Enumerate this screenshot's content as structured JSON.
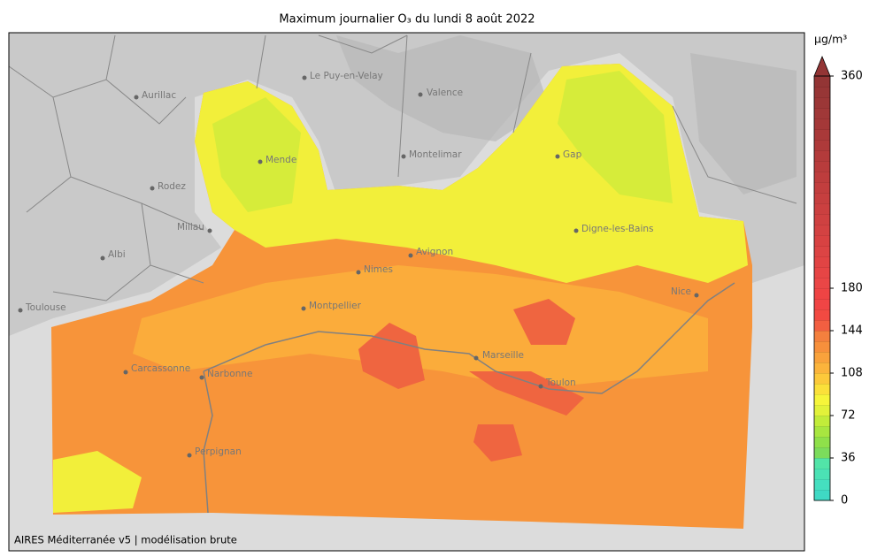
{
  "title": "Maximum journalier O₃ du lundi 8 août 2022",
  "unit": "µg/m³",
  "footer": "AIRES Méditerranée v5 | modélisation brute",
  "cities": [
    "Aurillac",
    "Le Puy-en-Velay",
    "Valence",
    "Mende",
    "Montelimar",
    "Gap",
    "Rodez",
    "Millau",
    "Digne-les-Bains",
    "Albi",
    "Avignon",
    "Nimes",
    "Nice",
    "Toulouse",
    "Montpellier",
    "Marseille",
    "Carcassonne",
    "Narbonne",
    "Toulon",
    "Perpignan"
  ],
  "colorbar": {
    "clim": [
      0,
      360
    ],
    "ticks": [
      0,
      36,
      72,
      108,
      144,
      180,
      360
    ],
    "colors": [
      "#3fd9c4",
      "#45dfc0",
      "#4be2b5",
      "#52e4a8",
      "#7cdc5c",
      "#8fe04a",
      "#a8e640",
      "#c2ec3a",
      "#e2f23a",
      "#f6f53a",
      "#fbe03a",
      "#fcc93b",
      "#fbb43c",
      "#f9a23c",
      "#f7903c",
      "#f4803e",
      "#f25f41",
      "#f24a42",
      "#f04545",
      "#ee4444",
      "#ea4646",
      "#e64545",
      "#e14444",
      "#dc4444",
      "#d84242",
      "#d34242",
      "#cf4141",
      "#cb4040",
      "#c63f3f",
      "#c23e3e",
      "#bd3d3d",
      "#b83c3c",
      "#b33b3b",
      "#ae3a3a",
      "#a93939",
      "#a43838",
      "#a03838",
      "#9b3737",
      "#973636",
      "#933535"
    ]
  }
}
